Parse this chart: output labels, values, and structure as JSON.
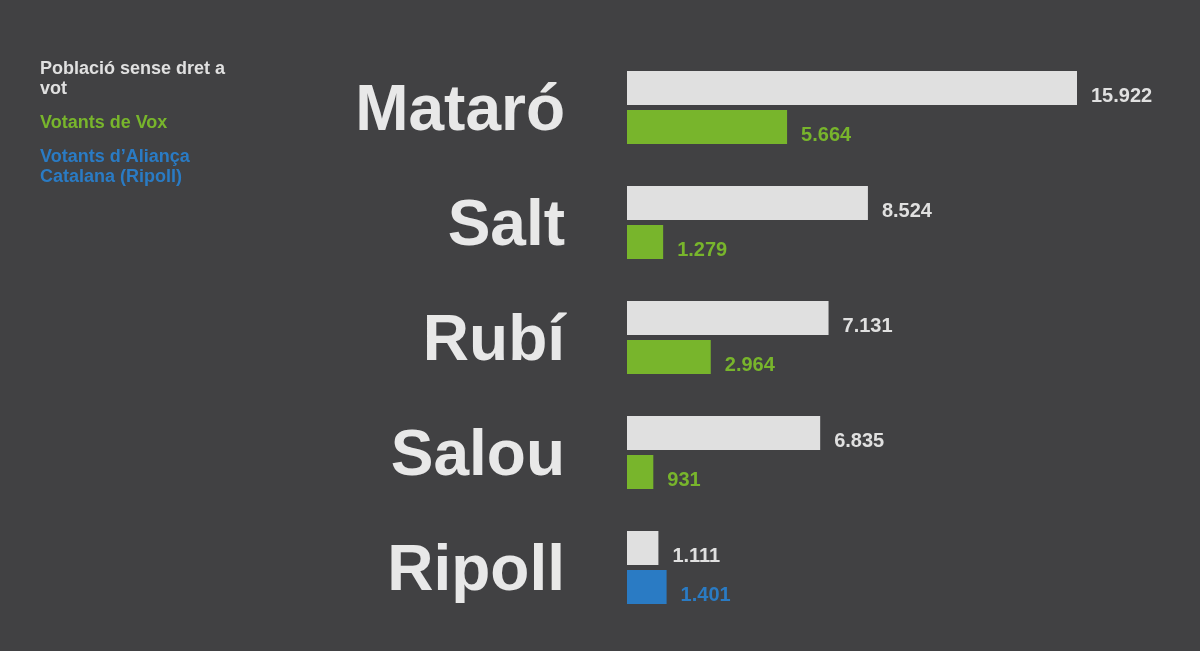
{
  "chart_data": {
    "type": "bar",
    "orientation": "horizontal",
    "legend": "top left",
    "categories": [
      "Mataró",
      "Salt",
      "Rubí",
      "Salou",
      "Ripoll"
    ],
    "series": [
      {
        "name": "Població sense dret a vot",
        "color": "#e0e0e0",
        "values": [
          15922,
          8524,
          7131,
          6835,
          1111
        ],
        "value_labels": [
          "15.922",
          "8.524",
          "7.131",
          "6.835",
          "1.111"
        ]
      },
      {
        "name": "Votants de Vox",
        "color": "#78b52c",
        "values": [
          5664,
          1279,
          2964,
          931,
          null
        ],
        "value_labels": [
          "5.664",
          "1.279",
          "2.964",
          "931",
          null
        ]
      },
      {
        "name": "Votants d’Aliança Catalana (Ripoll)",
        "color": "#2a7bc4",
        "values": [
          null,
          null,
          null,
          null,
          1401
        ],
        "value_labels": [
          null,
          null,
          null,
          null,
          "1.401"
        ]
      }
    ]
  }
}
